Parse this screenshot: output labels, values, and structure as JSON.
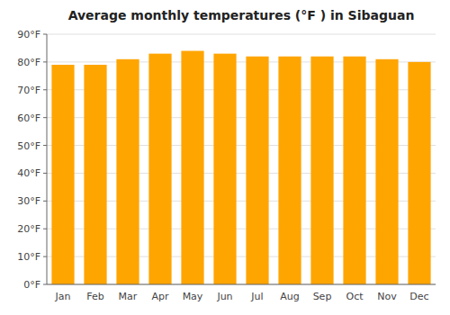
{
  "chart_data": {
    "type": "bar",
    "title": "Average monthly temperatures (°F ) in Sibaguan",
    "categories": [
      "Jan",
      "Feb",
      "Mar",
      "Apr",
      "May",
      "Jun",
      "Jul",
      "Aug",
      "Sep",
      "Oct",
      "Nov",
      "Dec"
    ],
    "values": [
      79,
      79,
      81,
      83,
      84,
      83,
      82,
      82,
      82,
      82,
      81,
      80
    ],
    "color": "#FFA500",
    "ylim": [
      0,
      90
    ],
    "yticks": [
      {
        "value": 0,
        "label": "0°F"
      },
      {
        "value": 10,
        "label": "10°F"
      },
      {
        "value": 20,
        "label": "20°F"
      },
      {
        "value": 30,
        "label": "30°F"
      },
      {
        "value": 40,
        "label": "40°F"
      },
      {
        "value": 50,
        "label": "50°F"
      },
      {
        "value": 60,
        "label": "60°F"
      },
      {
        "value": 70,
        "label": "70°F"
      },
      {
        "value": 80,
        "label": "80°F"
      },
      {
        "value": 90,
        "label": "90°F"
      }
    ],
    "grid": true
  }
}
